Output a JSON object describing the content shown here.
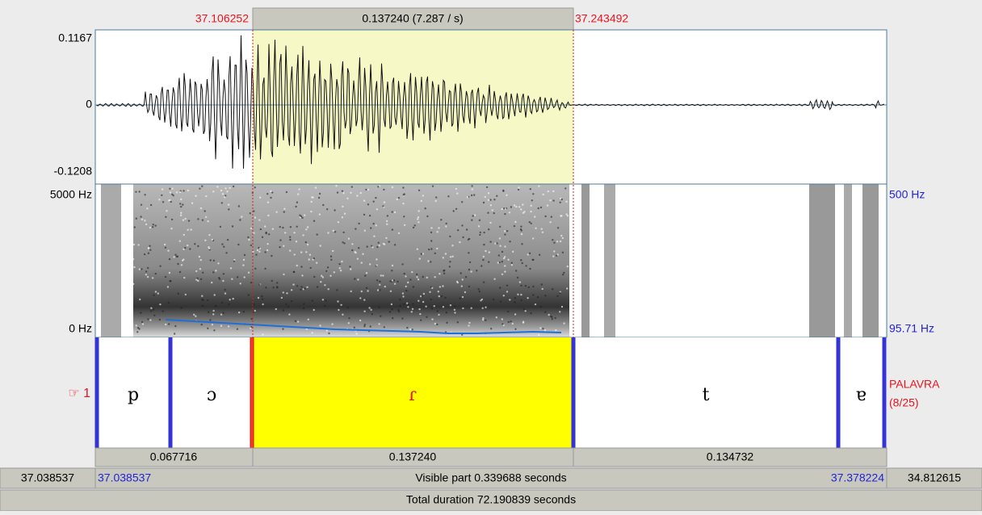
{
  "selection": {
    "start": "37.106252",
    "duration": "0.137240 (7.287 / s)",
    "end": "37.243492"
  },
  "waveform": {
    "max": "0.1167",
    "zero": "0",
    "min": "-0.1208"
  },
  "spectrogram": {
    "top": "5000 Hz",
    "bottom": "0 Hz",
    "pitch_top": "500 Hz",
    "pitch_bottom": "95.71 Hz"
  },
  "tier": {
    "number": "☞ 1",
    "name": "PALAVRA",
    "position": "(8/25)",
    "intervals": [
      "p",
      "ɔ",
      "ɾ",
      "t",
      "ɐ"
    ]
  },
  "durations": [
    "0.067716",
    "0.137240",
    "0.134732"
  ],
  "footer": {
    "window_start": "37.038537",
    "visible_start": "37.038537",
    "visible": "Visible part 0.339688 seconds",
    "visible_end": "37.378224",
    "window_end": "34.812615",
    "total": "Total duration 72.190839 seconds"
  }
}
